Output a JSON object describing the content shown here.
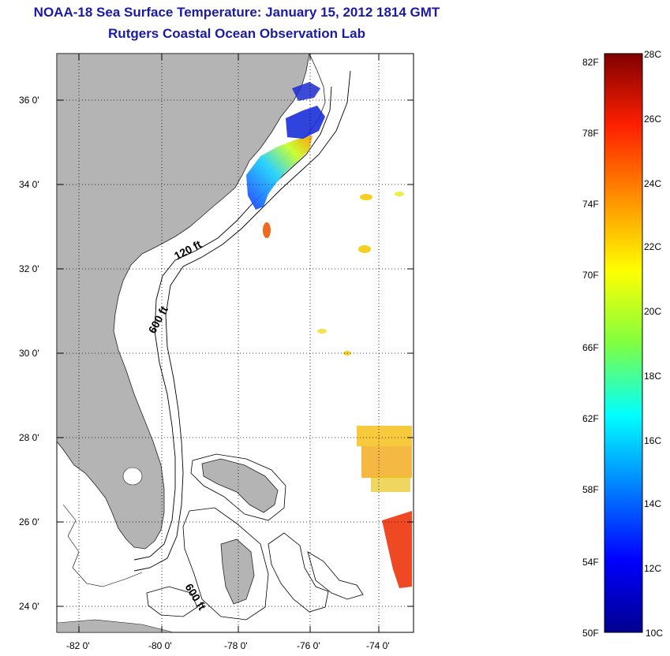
{
  "header": {
    "title": "NOAA-18 Sea Surface Temperature:  January 15, 2012 1814 GMT",
    "subtitle": "Rutgers Coastal Ocean Observation Lab"
  },
  "map": {
    "lat_labels": [
      "36 0'",
      "34 0'",
      "32 0'",
      "30 0'",
      "28 0'",
      "26 0'",
      "24 0'"
    ],
    "lon_labels": [
      "-82 0'",
      "-80 0'",
      "-78 0'",
      "-76 0'",
      "-74 0'"
    ],
    "contour_labels": {
      "c120": "120 ft",
      "c600a": "600 ft",
      "c600b": "600 ft"
    },
    "land_color": "#b4b4b4",
    "ocean_color": "#ffffff"
  },
  "colorbar": {
    "fahrenheit": [
      "82F",
      "78F",
      "74F",
      "70F",
      "66F",
      "62F",
      "58F",
      "54F",
      "50F"
    ],
    "celsius": [
      "28C",
      "26C",
      "24C",
      "22C",
      "20C",
      "18C",
      "16C",
      "14C",
      "12C",
      "10C"
    ]
  }
}
